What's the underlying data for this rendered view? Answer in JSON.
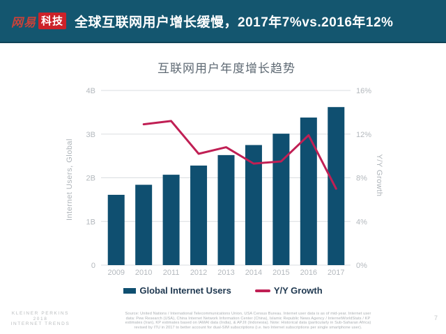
{
  "header": {
    "logo_brand": "网易",
    "logo_suffix": "科技",
    "title": "全球互联网用户增长缓慢，2017年7%vs.2016年12%"
  },
  "chart_data": {
    "type": "bar",
    "title": "互联网用户年度增长趋势",
    "categories": [
      "2009",
      "2010",
      "2011",
      "2012",
      "2013",
      "2014",
      "2015",
      "2016",
      "2017"
    ],
    "series": [
      {
        "name": "Global Internet Users",
        "type": "bar",
        "axis": "left",
        "color": "#0f4f70",
        "unit": "B",
        "values": [
          1.61,
          1.84,
          2.07,
          2.28,
          2.52,
          2.75,
          3.01,
          3.38,
          3.62
        ]
      },
      {
        "name": "Y/Y Growth",
        "type": "line",
        "axis": "right",
        "color": "#c01f54",
        "unit": "%",
        "values": [
          null,
          12.9,
          13.2,
          10.2,
          10.8,
          9.3,
          9.5,
          11.9,
          7.0
        ]
      }
    ],
    "left_axis": {
      "label": "Internet Users, Global",
      "ticks": [
        "0",
        "1B",
        "2B",
        "3B",
        "4B"
      ],
      "min": 0,
      "max": 4
    },
    "right_axis": {
      "label": "Y/Y Growth",
      "ticks": [
        "0%",
        "4%",
        "8%",
        "12%",
        "16%"
      ],
      "min": 0,
      "max": 16
    },
    "legend": [
      {
        "label": "Global Internet Users",
        "shape": "rect"
      },
      {
        "label": "Y/Y Growth",
        "shape": "line"
      }
    ],
    "grid": true,
    "legend_position": "bottom"
  },
  "footer": {
    "brand_lines": [
      "KLEINER PERKINS",
      "2018",
      "INTERNET TRENDS"
    ],
    "source_lines": [
      "Source: United Nations / International Telecommunications Union, USA Census Bureau. Internet user data is as of mid-year. Internet user",
      "data: Pew Research (USA), China Internet Network Information Center (China), Islamic Republic News Agency / InternetWorldStats / KP",
      "estimates (Iran), KP estimates based on IAMAI data (India), & APJII (Indonesia). Note: Historical data (particularly in Sub-Saharan Africa)",
      "revised by ITU in 2017 to better account for dual-SIM subscriptions (i.e. two Internet subscriptions per single smartphone user)."
    ],
    "page_number": "7"
  },
  "colors": {
    "header_bg": "#14566F",
    "logo_red": "#cc2229",
    "bar": "#0f4f70",
    "line": "#c01f54",
    "grid": "#dadde0",
    "tick_text": "#b3b8bd",
    "axis_title": "#aeb4b9",
    "chart_title": "#5e6973",
    "legend_text": "#1f3850"
  }
}
